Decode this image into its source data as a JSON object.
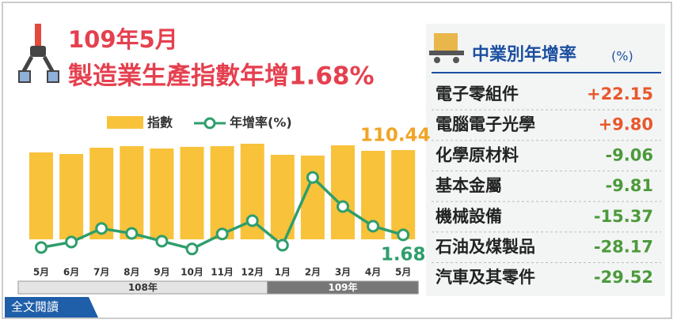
{
  "header": {
    "title": "109年5月",
    "subtitle": "製造業生產指數年增1.68%"
  },
  "chart_data": {
    "type": "bar-line",
    "categories": [
      "5月",
      "6月",
      "7月",
      "8月",
      "9月",
      "10月",
      "11月",
      "12月",
      "1月",
      "2月",
      "3月",
      "4月",
      "5月"
    ],
    "x_groups": [
      {
        "label": "108年",
        "count": 8
      },
      {
        "label": "109年",
        "count": 5
      }
    ],
    "series": [
      {
        "name": "指數",
        "color": "#f8c23a",
        "values": [
          107.5,
          105.6,
          113.4,
          115.3,
          112.4,
          114.4,
          115.3,
          118.3,
          104.6,
          103.6,
          116.3,
          109.5,
          110.44
        ]
      },
      {
        "name": "年增率(%)",
        "color": "#2f9e6c",
        "axis": "y2",
        "values": [
          -2.7,
          -0.8,
          3.9,
          2.2,
          -0.5,
          -3.2,
          2.0,
          6.6,
          -1.9,
          21.6,
          11.5,
          4.7,
          1.68
        ]
      }
    ],
    "ylim": [
      0,
      130
    ],
    "y2lim": [
      -10,
      30
    ]
  },
  "side_panel": {
    "title": "中業別年增率",
    "unit": "(%)",
    "rows": [
      [
        "電子零組件",
        "+22.15"
      ],
      [
        "電腦電子光學",
        "+9.80"
      ],
      [
        "化學原材料",
        "-9.06"
      ],
      [
        "基本金屬",
        "-9.81"
      ],
      [
        "機械設備",
        "-15.37"
      ],
      [
        "石油及煤製品",
        "-28.17"
      ],
      [
        "汽車及其零件",
        "-29.52"
      ]
    ]
  },
  "footer": {
    "button": "全文閱讀"
  }
}
